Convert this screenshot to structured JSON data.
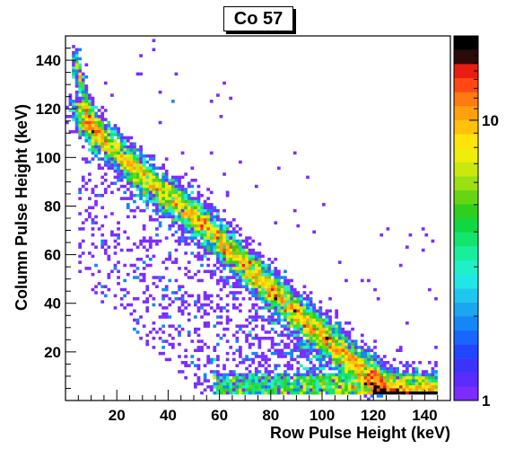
{
  "chart_data": {
    "type": "heatmap",
    "title": "Co 57",
    "xlabel": "Row Pulse Height (keV)",
    "ylabel": "Column Pulse Height (keV)",
    "xlim": [
      0,
      150
    ],
    "ylim": [
      0,
      150
    ],
    "x_ticks": [
      20,
      40,
      60,
      80,
      100,
      120,
      140
    ],
    "y_ticks": [
      20,
      40,
      60,
      80,
      100,
      120,
      140
    ],
    "z_scale": "log",
    "zlim": [
      1,
      20
    ],
    "colorbar_ticks": [
      1,
      10
    ],
    "palette": [
      "#7b2cff",
      "#5a2cff",
      "#3c33ff",
      "#2046ff",
      "#1666ff",
      "#1486f5",
      "#1aa7ef",
      "#1fc7ee",
      "#22e6e6",
      "#1ff0c8",
      "#19ee9c",
      "#12e46c",
      "#10d840",
      "#2ecf1e",
      "#66d614",
      "#9ae012",
      "#c8e80e",
      "#eeed0c",
      "#ffe40a",
      "#ffc20a",
      "#ffa00c",
      "#ff7a10",
      "#ff4812",
      "#e81e12",
      "#2b0a0a",
      "#000000"
    ],
    "hotspots": [
      {
        "x": 9,
        "y": 114,
        "count": 20
      },
      {
        "x": 6,
        "y": 119,
        "count": 12
      },
      {
        "x": 13,
        "y": 108,
        "count": 9
      },
      {
        "x": 120,
        "y": 5,
        "count": 7
      }
    ],
    "band_description_points": [
      {
        "x": 5,
        "y": 137
      },
      {
        "x": 10,
        "y": 112
      },
      {
        "x": 30,
        "y": 92
      },
      {
        "x": 50,
        "y": 76
      },
      {
        "x": 70,
        "y": 56
      },
      {
        "x": 90,
        "y": 36
      },
      {
        "x": 110,
        "y": 18
      },
      {
        "x": 125,
        "y": 6
      },
      {
        "x": 140,
        "y": 4
      }
    ]
  }
}
